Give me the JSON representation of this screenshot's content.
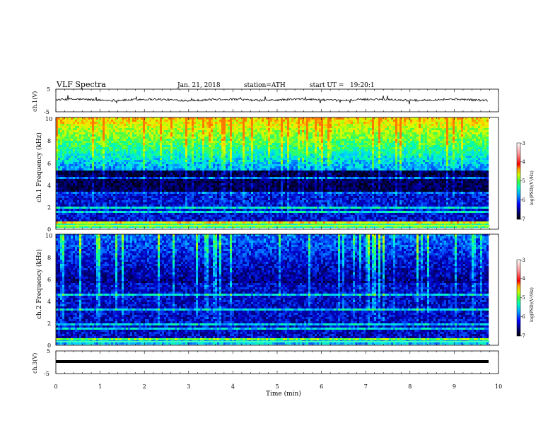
{
  "header": {
    "title": "VLF Spectra",
    "date": "Jan. 21, 2018",
    "station": "station=ATH",
    "start_ut": "start UT =   19:20:1"
  },
  "colors": {
    "spectrogram_scale": [
      "#000000",
      "#00002a",
      "#000080",
      "#0000ff",
      "#0070ff",
      "#00c8ff",
      "#00ffa0",
      "#40ff40",
      "#c0ff00",
      "#ffff00",
      "#ff8000",
      "#ff0000",
      "#ff8080",
      "#ffd0d0",
      "#ffffff"
    ]
  },
  "chart_data": [
    {
      "type": "line",
      "ylabel": "ch.1(V)",
      "ytick_labels": [
        "5",
        "-5"
      ],
      "ylim": [
        -5,
        5
      ],
      "xlim": [
        0,
        10
      ],
      "description_level": 0,
      "series": [
        {
          "values_baseline": 0
        }
      ]
    },
    {
      "type": "heatmap",
      "ylabel": "ch.1 Frequency (kHz)",
      "ytick_labels": [
        "0",
        "2",
        "4",
        "6",
        "8",
        "10"
      ],
      "ylim": [
        0,
        10
      ],
      "xlim": [
        0,
        9.8
      ],
      "colorbar": {
        "label": "log(PSD)(V²/Hz)",
        "tick_labels": [
          "-3",
          "-4",
          "-5",
          "-6",
          "-7"
        ],
        "range": [
          -7,
          -3
        ]
      }
    },
    {
      "type": "heatmap",
      "ylabel": "ch.2 Frequency (kHz)",
      "ytick_labels": [
        "0",
        "2",
        "4",
        "6",
        "8",
        "10"
      ],
      "ylim": [
        0,
        10
      ],
      "xlim": [
        0,
        9.8
      ],
      "colorbar": {
        "label": "log(PSD)(V²/Hz)",
        "tick_labels": [
          "-3",
          "-4",
          "-5",
          "-6",
          "-7"
        ],
        "range": [
          -7,
          -3
        ]
      }
    },
    {
      "type": "line",
      "ylabel": "ch.3(V)",
      "ytick_labels": [
        "5",
        "-5"
      ],
      "ylim": [
        -5,
        5
      ],
      "xlim": [
        0,
        10
      ],
      "xlabel": "Time (min)",
      "xtick_labels": [
        "0",
        "1",
        "2",
        "3",
        "4",
        "5",
        "6",
        "7",
        "8",
        "9",
        "10"
      ],
      "series": [
        {
          "values_baseline": 0
        }
      ]
    }
  ]
}
